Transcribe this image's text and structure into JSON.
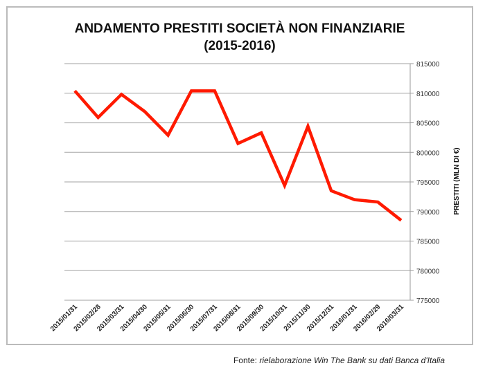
{
  "chart_data": {
    "type": "line",
    "title": "ANDAMENTO PRESTITI SOCIETÀ NON FINANZIARIE",
    "subtitle": "(2015-2016)",
    "xlabel": "",
    "ylabel": "PRESTITI (MLN DI €)",
    "ylim": [
      775000,
      815000
    ],
    "yticks": [
      "775000",
      "780000",
      "785000",
      "790000",
      "795000",
      "800000",
      "805000",
      "810000",
      "815000"
    ],
    "ytick_values": [
      775000,
      780000,
      785000,
      790000,
      795000,
      800000,
      805000,
      810000,
      815000
    ],
    "grid": true,
    "categories": [
      "2015/01/31",
      "2015/02/28",
      "2015/03/31",
      "2015/04/30",
      "2015/05/31",
      "2015/06/30",
      "2015/07/31",
      "2015/08/31",
      "2015/09/30",
      "2015/10/31",
      "2015/11/30",
      "2015/12/31",
      "2016/01/31",
      "2016/02/29",
      "2016/03/31"
    ],
    "series": [
      {
        "name": "Prestiti",
        "color": "#ff1a00",
        "values": [
          810400,
          805900,
          809800,
          806900,
          802900,
          810400,
          810400,
          801500,
          803300,
          794400,
          804400,
          793500,
          792000,
          791600,
          788500
        ]
      }
    ]
  },
  "footer": {
    "prefix": "Fonte: ",
    "source": "rielaborazione Win The Bank su dati Banca d'Italia"
  }
}
